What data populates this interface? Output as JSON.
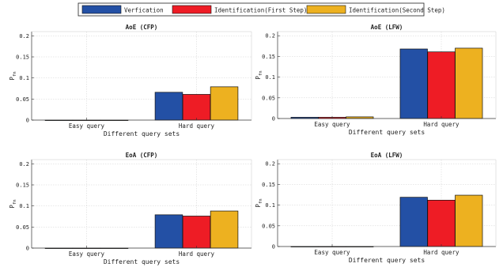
{
  "legend": {
    "items": [
      {
        "label": "Verfication",
        "color": "#2350a5"
      },
      {
        "label": "Identification(First Step)",
        "color": "#ee1c25"
      },
      {
        "label": "Identification(Second Step)",
        "color": "#edb120"
      }
    ]
  },
  "chart_data": [
    {
      "type": "bar",
      "title": "AoE (CFP)",
      "categories": [
        "Easy query",
        "Hard query"
      ],
      "series": [
        {
          "name": "Verfication",
          "values": [
            0.0,
            0.066
          ]
        },
        {
          "name": "Identification(First Step)",
          "values": [
            0.0,
            0.061
          ]
        },
        {
          "name": "Identification(Second Step)",
          "values": [
            0.0,
            0.079
          ]
        }
      ],
      "xlabel": "Different query sets",
      "ylabel_main": "P",
      "ylabel_sub": "fn",
      "ylim": [
        0,
        0.21
      ],
      "yticks": [
        "0",
        "0.05",
        "0.1",
        "0.15",
        "0.2"
      ],
      "grid": true
    },
    {
      "type": "bar",
      "title": "AoE  (LFW)",
      "categories": [
        "Easy query",
        "Hard query"
      ],
      "series": [
        {
          "name": "Verfication",
          "values": [
            0.003,
            0.168
          ]
        },
        {
          "name": "Identification(First Step)",
          "values": [
            0.003,
            0.161
          ]
        },
        {
          "name": "Identification(Second Step)",
          "values": [
            0.004,
            0.17
          ]
        }
      ],
      "xlabel": "Different query sets",
      "ylabel_main": "P",
      "ylabel_sub": "fn",
      "ylim": [
        0,
        0.21
      ],
      "yticks": [
        "0",
        "0.05",
        "0.1",
        "0.15",
        "0.2"
      ],
      "grid": true
    },
    {
      "type": "bar",
      "title": "EoA (CFP)",
      "categories": [
        "Easy query",
        "Hard query"
      ],
      "series": [
        {
          "name": "Verfication",
          "values": [
            0.0,
            0.079
          ]
        },
        {
          "name": "Identification(First Step)",
          "values": [
            0.0,
            0.076
          ]
        },
        {
          "name": "Identification(Second Step)",
          "values": [
            0.0,
            0.088
          ]
        }
      ],
      "xlabel": "Different query sets",
      "ylabel_main": "P",
      "ylabel_sub": "fn",
      "ylim": [
        0,
        0.21
      ],
      "yticks": [
        "0",
        "0.05",
        "0.1",
        "0.15",
        "0.2"
      ],
      "grid": true
    },
    {
      "type": "bar",
      "title": "EoA (LFW)",
      "categories": [
        "Easy query",
        "Hard query"
      ],
      "series": [
        {
          "name": "Verfication",
          "values": [
            0.0,
            0.119
          ]
        },
        {
          "name": "Identification(First Step)",
          "values": [
            0.0,
            0.112
          ]
        },
        {
          "name": "Identification(Second Step)",
          "values": [
            0.0,
            0.124
          ]
        }
      ],
      "xlabel": "Different query sets",
      "ylabel_main": "P",
      "ylabel_sub": "fn",
      "ylim": [
        0,
        0.21
      ],
      "yticks": [
        "0",
        "0.05",
        "0.1",
        "0.15",
        "0.2"
      ],
      "grid": true
    }
  ]
}
